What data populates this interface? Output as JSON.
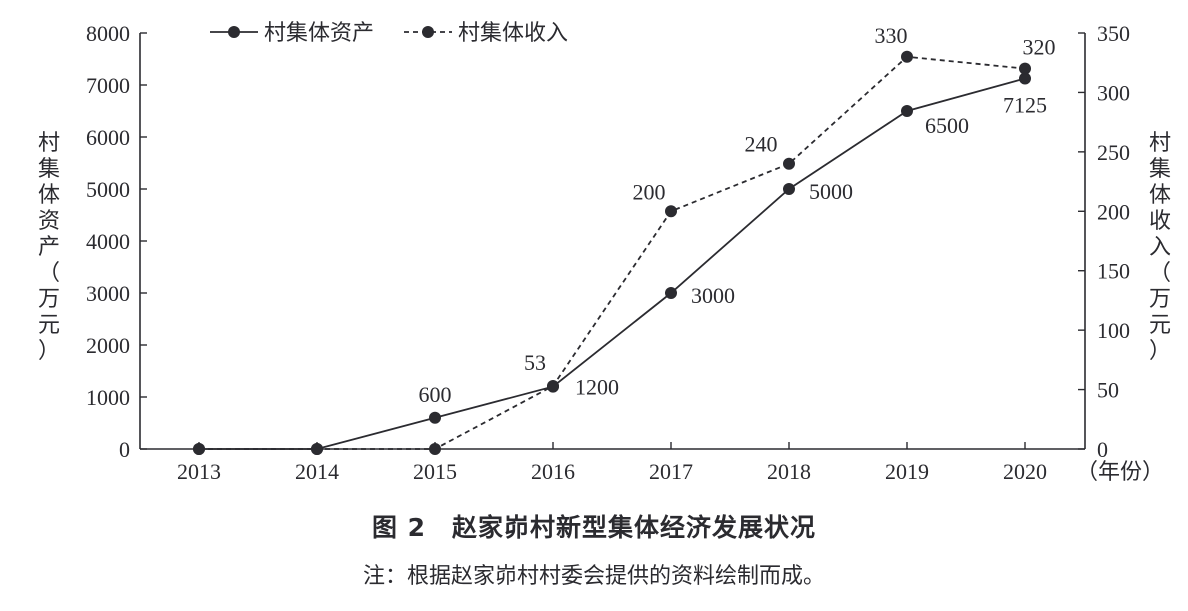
{
  "chart_data": {
    "type": "line",
    "title": "图 2　赵家峁村新型集体经济发展状况",
    "note": "注：根据赵家峁村村委会提供的资料绘制而成。",
    "xlabel": "（年份）",
    "x": [
      "2013",
      "2014",
      "2015",
      "2016",
      "2017",
      "2018",
      "2019",
      "2020"
    ],
    "y_left": {
      "label": "村集体资产（万元）",
      "label_chars": [
        "村",
        "集",
        "体",
        "资",
        "产",
        "（",
        "万",
        "元",
        "）"
      ],
      "lim": [
        0,
        8000
      ],
      "ticks": [
        "0",
        "1000",
        "2000",
        "3000",
        "4000",
        "5000",
        "6000",
        "7000",
        "8000"
      ]
    },
    "y_right": {
      "label": "村集体收入（万元）",
      "label_chars": [
        "村",
        "集",
        "体",
        "收",
        "入",
        "（",
        "万",
        "元",
        "）"
      ],
      "lim": [
        0,
        350
      ],
      "ticks": [
        "0",
        "50",
        "100",
        "150",
        "200",
        "250",
        "300",
        "350"
      ]
    },
    "series": [
      {
        "name": "村集体资产",
        "axis": "left",
        "style": "solid",
        "values": [
          0,
          0,
          600,
          1200,
          3000,
          5000,
          6500,
          7125
        ],
        "labels": [
          "",
          "",
          "600",
          "1200",
          "3000",
          "5000",
          "6500",
          "7125"
        ]
      },
      {
        "name": "村集体收入",
        "axis": "right",
        "style": "dashed",
        "values": [
          0,
          0,
          0,
          53,
          200,
          240,
          330,
          320
        ],
        "labels": [
          "",
          "",
          "",
          "53",
          "200",
          "240",
          "330",
          "320"
        ]
      }
    ],
    "legend_position": "top-left",
    "grid": false,
    "color": "#2b2b30"
  }
}
